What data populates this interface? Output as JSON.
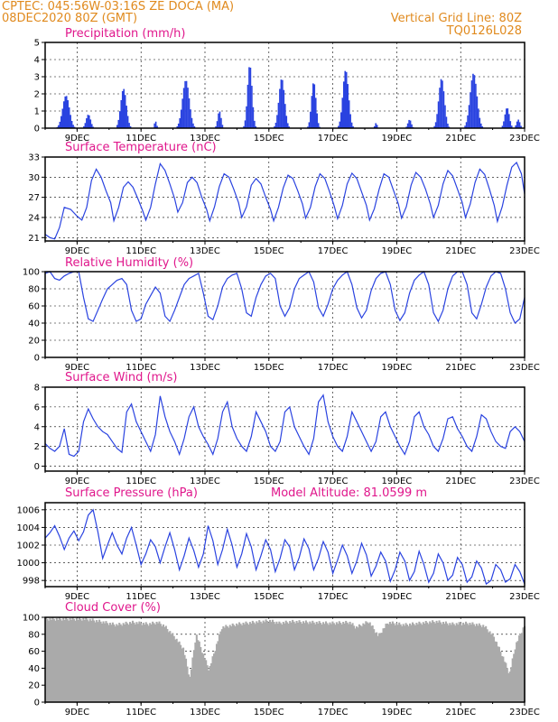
{
  "header": {
    "source_location": "CPTEC:   045:56W-03:16S   ZE DOCA (MA)",
    "run_time": "08DEC2020 80Z (GMT)",
    "grid_note": "Vertical Grid Line: 80Z",
    "model_code": "TQ0126L028"
  },
  "colors": {
    "text_header": "#e08a1e",
    "panel_title": "#e0178c",
    "series": "#2a43e0",
    "cloud": "#aaaaaa"
  },
  "chart_data": [
    {
      "id": "precipitation",
      "type": "bar",
      "title": "Precipitation (mm/h)",
      "ylim": [
        0,
        5
      ],
      "yticks": [
        0,
        1,
        2,
        3,
        4,
        5
      ],
      "date_ticks": [
        "9DEC",
        "11DEC",
        "13DEC",
        "15DEC",
        "17DEC",
        "19DEC",
        "21DEC",
        "23DEC"
      ],
      "x_start_day": 8.3,
      "x_end_day": 23.3,
      "x_step_day": 0.0417,
      "bursts": [
        {
          "day": 8.95,
          "peak": 1.9,
          "width": 0.3
        },
        {
          "day": 9.65,
          "peak": 0.8,
          "width": 0.2
        },
        {
          "day": 10.75,
          "peak": 2.3,
          "width": 0.25
        },
        {
          "day": 11.75,
          "peak": 0.4,
          "width": 0.1
        },
        {
          "day": 12.7,
          "peak": 2.8,
          "width": 0.3
        },
        {
          "day": 13.75,
          "peak": 1.0,
          "width": 0.15
        },
        {
          "day": 14.7,
          "peak": 3.7,
          "width": 0.2
        },
        {
          "day": 15.7,
          "peak": 2.9,
          "width": 0.25
        },
        {
          "day": 16.7,
          "peak": 2.7,
          "width": 0.2
        },
        {
          "day": 17.7,
          "peak": 3.4,
          "width": 0.25
        },
        {
          "day": 18.65,
          "peak": 0.3,
          "width": 0.1
        },
        {
          "day": 19.7,
          "peak": 0.5,
          "width": 0.15
        },
        {
          "day": 20.7,
          "peak": 2.9,
          "width": 0.25
        },
        {
          "day": 21.7,
          "peak": 3.2,
          "width": 0.3
        },
        {
          "day": 22.75,
          "peak": 1.2,
          "width": 0.2
        },
        {
          "day": 23.1,
          "peak": 0.5,
          "width": 0.15
        }
      ]
    },
    {
      "id": "surface-temperature",
      "type": "line",
      "title": "Surface Temperature (nC)",
      "ylim": [
        20.5,
        33
      ],
      "yticks": [
        21,
        24,
        27,
        30,
        33
      ],
      "date_ticks": [
        "9DEC",
        "11DEC",
        "13DEC",
        "15DEC",
        "17DEC",
        "19DEC",
        "21DEC",
        "23DEC"
      ],
      "x": [
        8.3,
        8.45,
        8.6,
        8.75,
        8.9,
        9.1,
        9.3,
        9.45,
        9.6,
        9.75,
        9.9,
        10.05,
        10.2,
        10.35,
        10.45,
        10.6,
        10.75,
        10.9,
        11.05,
        11.2,
        11.35,
        11.45,
        11.6,
        11.75,
        11.9,
        12.05,
        12.2,
        12.35,
        12.45,
        12.6,
        12.75,
        12.9,
        13.05,
        13.2,
        13.35,
        13.45,
        13.6,
        13.75,
        13.9,
        14.05,
        14.2,
        14.35,
        14.45,
        14.6,
        14.75,
        14.9,
        15.05,
        15.2,
        15.35,
        15.45,
        15.6,
        15.75,
        15.9,
        16.05,
        16.2,
        16.35,
        16.45,
        16.6,
        16.75,
        16.9,
        17.05,
        17.2,
        17.35,
        17.45,
        17.6,
        17.75,
        17.9,
        18.05,
        18.2,
        18.35,
        18.45,
        18.6,
        18.75,
        18.9,
        19.05,
        19.2,
        19.35,
        19.45,
        19.6,
        19.75,
        19.9,
        20.05,
        20.2,
        20.35,
        20.45,
        20.6,
        20.75,
        20.9,
        21.05,
        21.2,
        21.35,
        21.45,
        21.6,
        21.75,
        21.9,
        22.05,
        22.2,
        22.35,
        22.45,
        22.6,
        22.75,
        22.9,
        23.05,
        23.2,
        23.3
      ],
      "values": [
        21.5,
        21.0,
        20.8,
        22.5,
        25.5,
        25.2,
        24.2,
        23.6,
        25.5,
        29.5,
        31.2,
        30.0,
        28.0,
        26.2,
        23.5,
        25.5,
        28.5,
        29.3,
        28.5,
        26.8,
        25.0,
        23.6,
        25.5,
        29.0,
        32.0,
        31.0,
        29.0,
        26.8,
        24.8,
        26.2,
        29.2,
        30.0,
        29.2,
        27.0,
        25.2,
        23.5,
        25.6,
        28.6,
        30.5,
        30.0,
        28.2,
        26.2,
        24.0,
        25.6,
        28.8,
        29.8,
        29.0,
        27.0,
        25.2,
        23.5,
        25.5,
        28.4,
        30.3,
        29.8,
        28.0,
        26.0,
        23.9,
        25.5,
        28.6,
        30.5,
        29.8,
        27.8,
        25.6,
        23.8,
        25.8,
        29.0,
        30.6,
        29.8,
        27.8,
        25.8,
        23.6,
        25.3,
        28.2,
        30.5,
        30.0,
        28.0,
        26.0,
        23.9,
        25.6,
        28.8,
        30.7,
        30.0,
        28.2,
        26.0,
        24.0,
        25.8,
        29.0,
        31.0,
        30.2,
        28.2,
        26.2,
        24.0,
        26.0,
        29.2,
        31.2,
        30.4,
        28.2,
        25.8,
        23.4,
        25.6,
        28.8,
        31.5,
        32.2,
        30.5,
        27.5
      ]
    },
    {
      "id": "relative-humidity",
      "type": "line",
      "title": "Relative Humidity (%)",
      "ylim": [
        0,
        100
      ],
      "yticks": [
        0,
        20,
        40,
        60,
        80,
        100
      ],
      "date_ticks": [
        "9DEC",
        "11DEC",
        "13DEC",
        "15DEC",
        "17DEC",
        "19DEC",
        "21DEC",
        "23DEC"
      ],
      "x": [
        8.3,
        8.45,
        8.6,
        8.75,
        8.9,
        9.05,
        9.2,
        9.35,
        9.5,
        9.65,
        9.8,
        9.95,
        10.1,
        10.25,
        10.4,
        10.55,
        10.7,
        10.85,
        11.0,
        11.15,
        11.3,
        11.45,
        11.6,
        11.75,
        11.9,
        12.05,
        12.2,
        12.35,
        12.5,
        12.65,
        12.8,
        12.95,
        13.1,
        13.25,
        13.4,
        13.55,
        13.7,
        13.85,
        14.0,
        14.15,
        14.3,
        14.45,
        14.6,
        14.75,
        14.9,
        15.05,
        15.2,
        15.35,
        15.5,
        15.65,
        15.8,
        15.95,
        16.1,
        16.25,
        16.4,
        16.55,
        16.7,
        16.85,
        17.0,
        17.15,
        17.3,
        17.45,
        17.6,
        17.75,
        17.9,
        18.05,
        18.2,
        18.35,
        18.5,
        18.65,
        18.8,
        18.95,
        19.1,
        19.25,
        19.4,
        19.55,
        19.7,
        19.85,
        20.0,
        20.15,
        20.3,
        20.45,
        20.6,
        20.75,
        20.9,
        21.05,
        21.2,
        21.35,
        21.5,
        21.65,
        21.8,
        21.95,
        22.1,
        22.25,
        22.4,
        22.55,
        22.7,
        22.85,
        23.0,
        23.15,
        23.3
      ],
      "values": [
        98,
        100,
        92,
        90,
        95,
        98,
        100,
        100,
        70,
        45,
        42,
        55,
        68,
        80,
        85,
        90,
        92,
        85,
        55,
        42,
        45,
        62,
        72,
        82,
        75,
        48,
        42,
        55,
        70,
        85,
        92,
        95,
        98,
        75,
        48,
        44,
        60,
        82,
        92,
        96,
        98,
        80,
        52,
        48,
        70,
        85,
        95,
        98,
        92,
        60,
        48,
        58,
        80,
        92,
        96,
        100,
        88,
        58,
        48,
        62,
        80,
        90,
        96,
        100,
        85,
        58,
        46,
        55,
        78,
        92,
        98,
        100,
        85,
        55,
        43,
        52,
        75,
        90,
        96,
        100,
        85,
        52,
        42,
        55,
        80,
        95,
        100,
        100,
        85,
        52,
        45,
        62,
        82,
        95,
        100,
        98,
        80,
        52,
        40,
        45,
        70
      ]
    },
    {
      "id": "surface-wind",
      "type": "line",
      "title": "Surface Wind (m/s)",
      "ylim": [
        -0.5,
        8
      ],
      "yticks": [
        0,
        2,
        4,
        6,
        8
      ],
      "date_ticks": [
        "9DEC",
        "11DEC",
        "13DEC",
        "15DEC",
        "17DEC",
        "19DEC",
        "21DEC",
        "23DEC"
      ],
      "x": [
        8.3,
        8.45,
        8.6,
        8.75,
        8.9,
        9.05,
        9.2,
        9.35,
        9.5,
        9.65,
        9.8,
        9.95,
        10.1,
        10.25,
        10.4,
        10.55,
        10.7,
        10.85,
        11.0,
        11.15,
        11.3,
        11.45,
        11.6,
        11.75,
        11.9,
        12.05,
        12.2,
        12.35,
        12.5,
        12.65,
        12.8,
        12.95,
        13.1,
        13.25,
        13.4,
        13.55,
        13.7,
        13.85,
        14.0,
        14.15,
        14.3,
        14.45,
        14.6,
        14.75,
        14.9,
        15.05,
        15.2,
        15.35,
        15.5,
        15.65,
        15.8,
        15.95,
        16.1,
        16.25,
        16.4,
        16.55,
        16.7,
        16.85,
        17.0,
        17.15,
        17.3,
        17.45,
        17.6,
        17.75,
        17.9,
        18.05,
        18.2,
        18.35,
        18.5,
        18.65,
        18.8,
        18.95,
        19.1,
        19.25,
        19.4,
        19.55,
        19.7,
        19.85,
        20.0,
        20.15,
        20.3,
        20.45,
        20.6,
        20.75,
        20.9,
        21.05,
        21.2,
        21.35,
        21.5,
        21.65,
        21.8,
        21.95,
        22.1,
        22.25,
        22.4,
        22.55,
        22.7,
        22.85,
        23.0,
        23.15,
        23.3
      ],
      "values": [
        2.3,
        1.8,
        1.5,
        2.0,
        3.8,
        1.2,
        1.0,
        1.5,
        4.5,
        5.8,
        4.8,
        4.0,
        3.5,
        3.2,
        2.5,
        1.8,
        1.4,
        5.5,
        6.3,
        4.5,
        3.5,
        2.5,
        1.5,
        3.2,
        7.1,
        5.0,
        3.5,
        2.5,
        1.2,
        2.8,
        5.0,
        6.0,
        4.0,
        3.0,
        2.2,
        1.2,
        2.8,
        5.5,
        6.5,
        4.0,
        2.8,
        2.0,
        1.5,
        3.0,
        5.5,
        4.5,
        3.5,
        2.0,
        1.5,
        2.5,
        5.5,
        6.0,
        4.0,
        3.0,
        2.0,
        1.2,
        2.8,
        6.5,
        7.2,
        4.5,
        3.0,
        2.0,
        1.5,
        3.0,
        5.5,
        4.5,
        3.5,
        2.5,
        1.5,
        2.5,
        5.0,
        5.5,
        4.0,
        3.0,
        2.0,
        1.2,
        2.5,
        5.0,
        5.5,
        4.0,
        3.2,
        2.0,
        1.5,
        2.8,
        4.8,
        5.0,
        3.8,
        3.0,
        2.0,
        1.5,
        3.0,
        5.2,
        4.8,
        3.5,
        2.5,
        2.0,
        1.8,
        3.5,
        4.0,
        3.5,
        2.5
      ]
    },
    {
      "id": "surface-pressure",
      "type": "line",
      "title": "Surface Pressure (hPa)",
      "annotation": "Model Altitude: 81.0599 m",
      "ylim": [
        997.3,
        1006.8
      ],
      "yticks": [
        998,
        1000,
        1002,
        1004,
        1006
      ],
      "date_ticks": [
        "9DEC",
        "11DEC",
        "13DEC",
        "15DEC",
        "17DEC",
        "19DEC",
        "21DEC",
        "23DEC"
      ],
      "x": [
        8.3,
        8.45,
        8.6,
        8.75,
        8.9,
        9.05,
        9.2,
        9.35,
        9.5,
        9.65,
        9.8,
        9.95,
        10.1,
        10.25,
        10.4,
        10.55,
        10.7,
        10.85,
        11.0,
        11.15,
        11.3,
        11.45,
        11.6,
        11.75,
        11.9,
        12.05,
        12.2,
        12.35,
        12.5,
        12.65,
        12.8,
        12.95,
        13.1,
        13.25,
        13.4,
        13.55,
        13.7,
        13.85,
        14.0,
        14.15,
        14.3,
        14.45,
        14.6,
        14.75,
        14.9,
        15.05,
        15.2,
        15.35,
        15.5,
        15.65,
        15.8,
        15.95,
        16.1,
        16.25,
        16.4,
        16.55,
        16.7,
        16.85,
        17.0,
        17.15,
        17.3,
        17.45,
        17.6,
        17.75,
        17.9,
        18.05,
        18.2,
        18.35,
        18.5,
        18.65,
        18.8,
        18.95,
        19.1,
        19.25,
        19.4,
        19.55,
        19.7,
        19.85,
        20.0,
        20.15,
        20.3,
        20.45,
        20.6,
        20.75,
        20.9,
        21.05,
        21.2,
        21.35,
        21.5,
        21.65,
        21.8,
        21.95,
        22.1,
        22.25,
        22.4,
        22.55,
        22.7,
        22.85,
        23.0,
        23.15,
        23.3
      ],
      "values": [
        1002.8,
        1003.4,
        1004.2,
        1003.0,
        1001.5,
        1002.8,
        1003.6,
        1002.5,
        1003.5,
        1005.4,
        1006.0,
        1003.5,
        1000.5,
        1002.0,
        1003.4,
        1002.0,
        1001.0,
        1002.8,
        1004.0,
        1002.0,
        999.8,
        1001.0,
        1002.6,
        1001.8,
        1000.0,
        1001.8,
        1003.4,
        1001.5,
        999.2,
        1000.8,
        1002.8,
        1001.4,
        999.5,
        1001.0,
        1004.2,
        1002.5,
        999.8,
        1001.5,
        1003.8,
        1002.0,
        999.5,
        1001.0,
        1003.3,
        1001.8,
        999.2,
        1000.8,
        1002.6,
        1001.5,
        999.0,
        1000.5,
        1002.6,
        1001.8,
        999.2,
        1000.6,
        1002.7,
        1001.6,
        999.2,
        1000.5,
        1002.4,
        1001.2,
        998.8,
        1000.3,
        1002.0,
        1000.8,
        998.8,
        1000.2,
        1002.2,
        1000.9,
        998.5,
        999.6,
        1001.2,
        1000.2,
        997.9,
        999.2,
        1001.2,
        1000.2,
        998.0,
        999.0,
        1001.3,
        999.8,
        997.8,
        998.8,
        1001.0,
        1000.0,
        998.0,
        998.6,
        1000.6,
        999.8,
        997.8,
        998.4,
        1000.2,
        999.4,
        997.6,
        998.0,
        999.8,
        999.2,
        997.8,
        998.2,
        999.8,
        999.0,
        997.6
      ]
    },
    {
      "id": "cloud-cover",
      "type": "bar",
      "title": "Cloud Cover (%)",
      "ylim": [
        0,
        100
      ],
      "yticks": [
        0,
        20,
        40,
        60,
        80,
        100
      ],
      "date_ticks": [
        "9DEC",
        "11DEC",
        "13DEC",
        "15DEC",
        "17DEC",
        "19DEC",
        "21DEC",
        "23DEC"
      ],
      "x_start_day": 8.3,
      "x_end_day": 23.3,
      "x_step_day": 0.0417,
      "profile_x": [
        8.3,
        9.2,
        9.5,
        9.7,
        10.0,
        10.5,
        11.0,
        11.5,
        11.8,
        12.0,
        12.3,
        12.6,
        12.8,
        13.0,
        13.2,
        13.4,
        13.8,
        14.3,
        14.8,
        15.3,
        15.6,
        16.0,
        16.6,
        17.2,
        17.8,
        18.0,
        18.4,
        18.7,
        19.0,
        19.5,
        20.0,
        20.5,
        21.0,
        21.5,
        22.0,
        22.3,
        22.6,
        22.8,
        23.0,
        23.3
      ],
      "profile_v": [
        100,
        100,
        100,
        99,
        97,
        93,
        96,
        94,
        96,
        92,
        80,
        65,
        30,
        82,
        60,
        40,
        90,
        94,
        96,
        98,
        95,
        97,
        96,
        95,
        96,
        90,
        97,
        80,
        96,
        93,
        95,
        97,
        94,
        95,
        92,
        80,
        55,
        35,
        70,
        95
      ]
    }
  ]
}
